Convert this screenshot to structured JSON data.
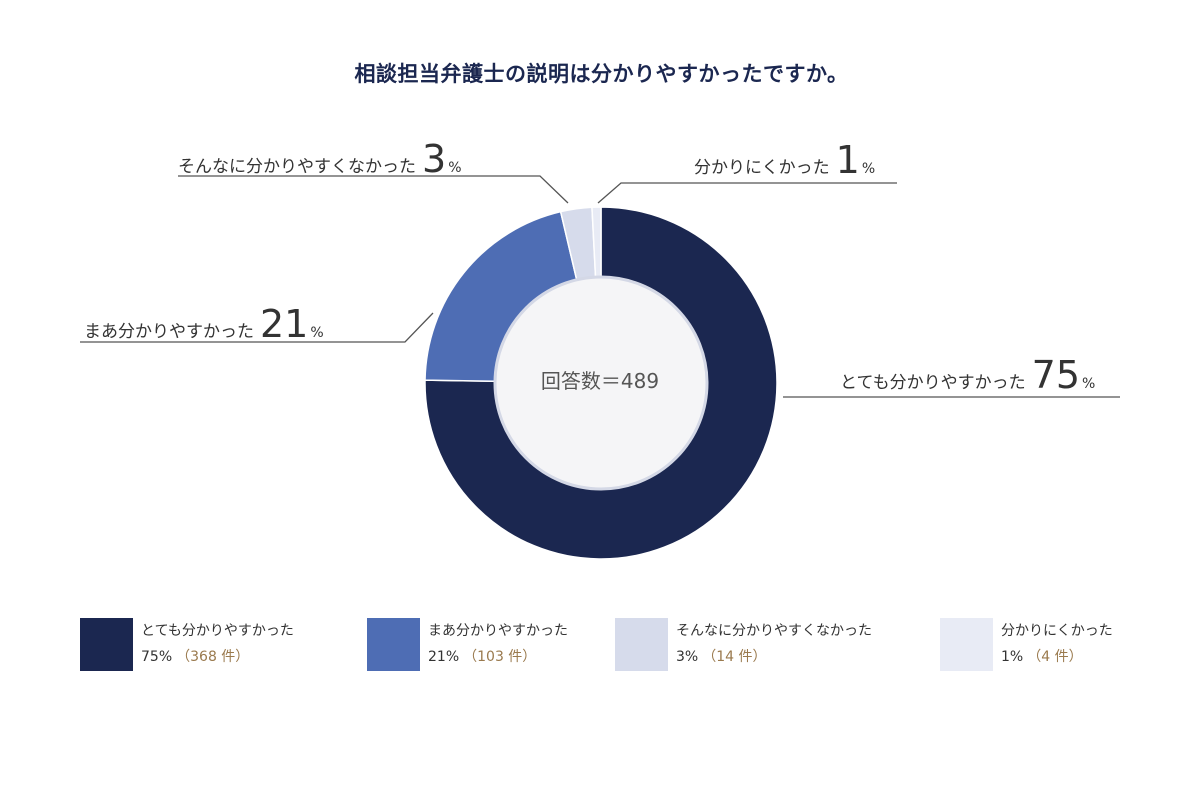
{
  "chart_data": {
    "type": "pie",
    "title": "相談担当弁護士の説明は分かりやすかったですか。",
    "center_text": "回答数＝489",
    "total": 489,
    "slices": [
      {
        "label": "とても分かりやすかった",
        "percent": 75,
        "percent_text": "75",
        "count": 368,
        "legend_value": "75%",
        "legend_count": "（368 件）",
        "color": "#1b2750"
      },
      {
        "label": "まあ分かりやすかった",
        "percent": 21,
        "percent_text": "21",
        "count": 103,
        "legend_value": "21%",
        "legend_count": "（103 件）",
        "color": "#4e6db4"
      },
      {
        "label": "そんなに分かりやすくなかった",
        "percent": 3,
        "percent_text": "3",
        "count": 14,
        "legend_value": "3%",
        "legend_count": "（14 件）",
        "color": "#d6dbeb"
      },
      {
        "label": "分かりにくかった",
        "percent": 1,
        "percent_text": "1",
        "count": 4,
        "legend_value": "1%",
        "legend_count": "（4 件）",
        "color": "#e8ebf5"
      }
    ],
    "percent_unit": "%",
    "legend_placement": "bottom"
  }
}
